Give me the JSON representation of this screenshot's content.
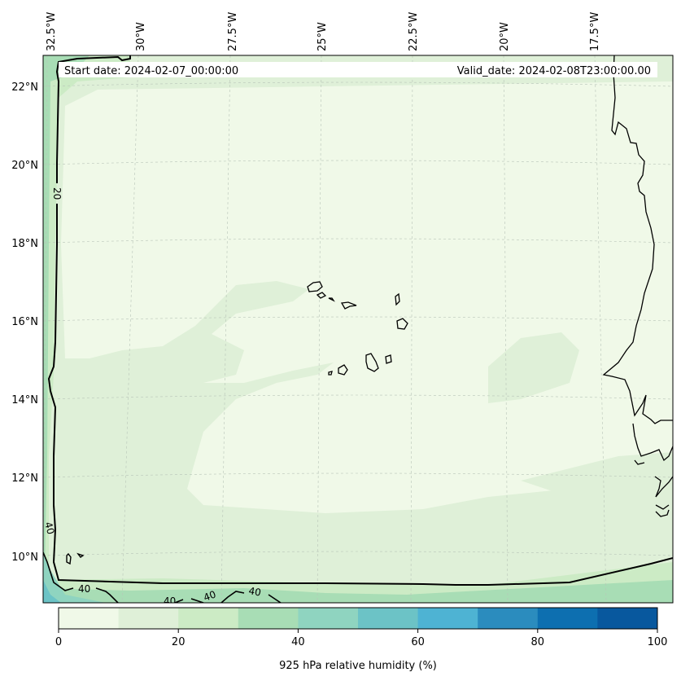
{
  "map": {
    "start_date": "Start date: 2024-02-07_00:00:00",
    "valid_date": "Valid_date: 2024-02-08T23:00:00.00",
    "lon_labels": [
      "32.5°W",
      "30°W",
      "27.5°W",
      "25°W",
      "22.5°W",
      "20°W",
      "17.5°W"
    ],
    "lat_labels": [
      "22°N",
      "20°N",
      "18°N",
      "16°N",
      "14°N",
      "12°N",
      "10°N"
    ],
    "contour_labels": [
      "20",
      "40",
      "40",
      "40",
      "40",
      "40"
    ]
  },
  "colorbar": {
    "label": "925 hPa relative humidity (%)",
    "ticks": [
      "0",
      "20",
      "40",
      "60",
      "80",
      "100"
    ],
    "colors": [
      "#f0f9e8",
      "#dff0d8",
      "#ccebc5",
      "#a8ddb5",
      "#8fd4c0",
      "#6cc3c6",
      "#4eb3d3",
      "#2b8cbe",
      "#0d6fb0",
      "#08589e"
    ]
  }
}
